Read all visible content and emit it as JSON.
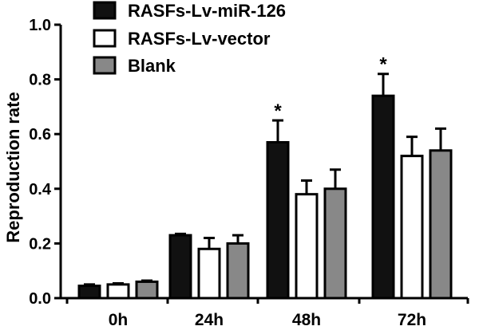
{
  "chart_data": {
    "type": "bar",
    "title": "",
    "xlabel": "",
    "ylabel": "Reproduction rate",
    "ylim": [
      0,
      1.0
    ],
    "yticks": [
      "0.0",
      "0.2",
      "0.4",
      "0.6",
      "0.8",
      "1.0"
    ],
    "ytick_values": [
      0,
      0.2,
      0.4,
      0.6,
      0.8,
      1.0
    ],
    "categories": [
      "0h",
      "24h",
      "48h",
      "72h"
    ],
    "series": [
      {
        "name": "RASFs-Lv-miR-126",
        "fill": "#111111",
        "values": [
          0.045,
          0.23,
          0.57,
          0.74
        ],
        "errors": [
          0.005,
          0.005,
          0.08,
          0.08
        ],
        "annotations": [
          "",
          "",
          "*",
          "*"
        ]
      },
      {
        "name": "RASFs-Lv-vector",
        "fill": "#ffffff",
        "values": [
          0.05,
          0.18,
          0.38,
          0.52
        ],
        "errors": [
          0.004,
          0.04,
          0.05,
          0.07
        ],
        "annotations": [
          "",
          "",
          "",
          ""
        ]
      },
      {
        "name": "Blank",
        "fill": "#888888",
        "values": [
          0.06,
          0.2,
          0.4,
          0.54
        ],
        "errors": [
          0.004,
          0.03,
          0.07,
          0.08
        ],
        "annotations": [
          "",
          "",
          "",
          ""
        ]
      }
    ],
    "grid": false,
    "legend_position": "top-left",
    "significance_marker": "*"
  }
}
